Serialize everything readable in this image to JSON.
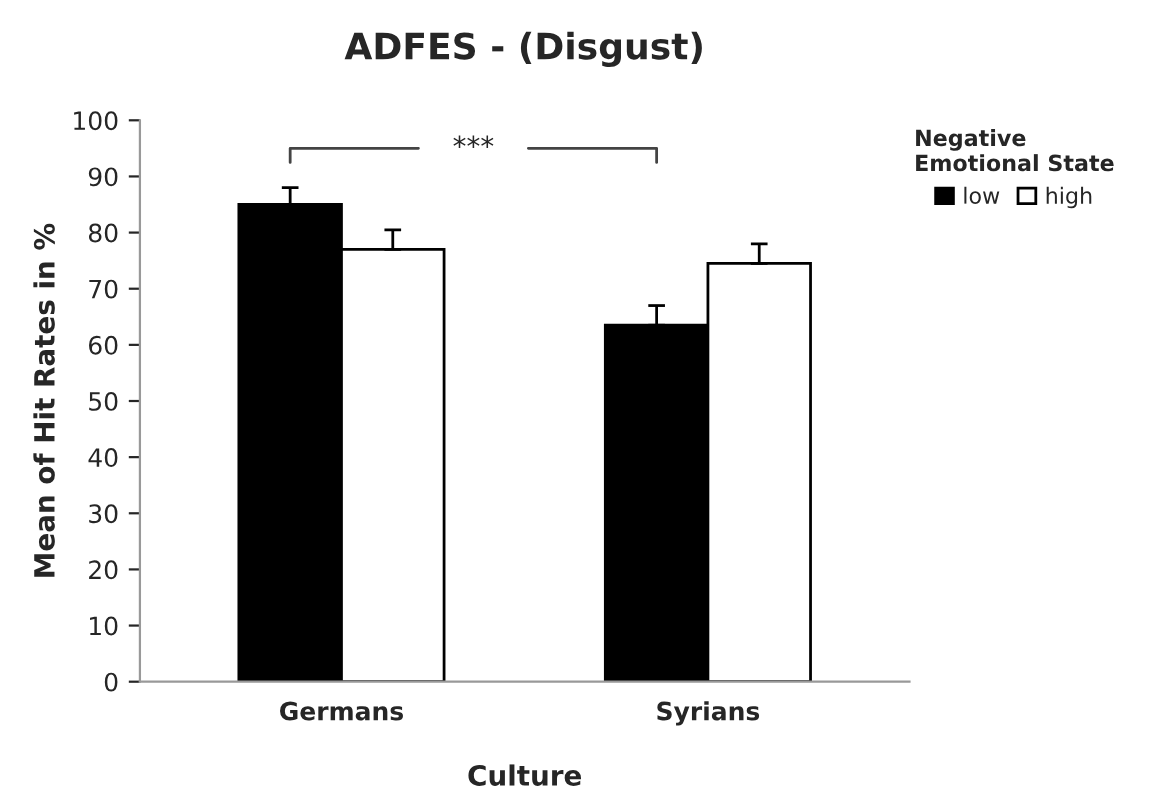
{
  "chart_data": {
    "type": "bar",
    "title": "ADFES - (Disgust)",
    "xlabel": "Culture",
    "ylabel": "Mean of Hit Rates in %",
    "legend_title": "Negative\nEmotional State",
    "categories": [
      "Germans",
      "Syrians"
    ],
    "series": [
      {
        "name": "low",
        "color": "#000000",
        "values": [
          85,
          63.5
        ],
        "errors": [
          3,
          3.5
        ]
      },
      {
        "name": "high",
        "color": "#ffffff",
        "values": [
          77,
          74.5
        ],
        "errors": [
          3.5,
          3.5
        ]
      }
    ],
    "ylim": [
      0,
      100
    ],
    "yticks": [
      0,
      10,
      20,
      30,
      40,
      50,
      60,
      70,
      80,
      90,
      100
    ],
    "grid": false,
    "legend": "right",
    "annotations": [
      "***"
    ]
  }
}
